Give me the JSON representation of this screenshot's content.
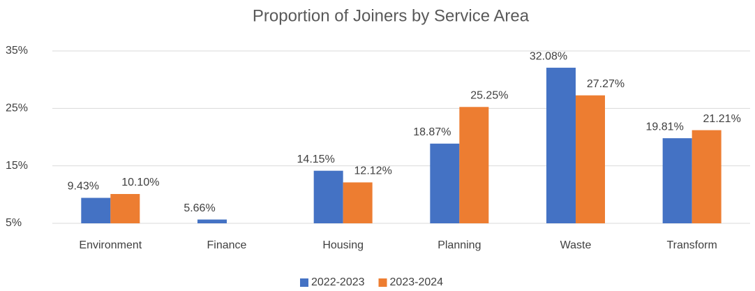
{
  "chart_data": {
    "type": "bar",
    "title": "Proportion of Joiners by Service Area",
    "categories": [
      "Environment",
      "Finance",
      "Housing",
      "Planning",
      "Waste",
      "Transform"
    ],
    "series": [
      {
        "name": "2022-2023",
        "color": "#4472c4",
        "values": [
          9.43,
          5.66,
          14.15,
          18.87,
          32.08,
          19.81
        ],
        "value_labels": [
          "9.43%",
          "5.66%",
          "14.15%",
          "18.87%",
          "32.08%",
          "19.81%"
        ]
      },
      {
        "name": "2023-2024",
        "color": "#ed7d31",
        "values": [
          10.1,
          null,
          12.12,
          25.25,
          27.27,
          21.21
        ],
        "value_labels": [
          "10.10%",
          null,
          "12.12%",
          "25.25%",
          "27.27%",
          "21.21%"
        ]
      }
    ],
    "ylim": [
      5,
      35
    ],
    "yticks": [
      {
        "value": 5,
        "label": "5%"
      },
      {
        "value": 15,
        "label": "15%"
      },
      {
        "value": 25,
        "label": "25%"
      },
      {
        "value": 35,
        "label": "35%"
      }
    ],
    "grid": true,
    "legend": "bottom"
  }
}
